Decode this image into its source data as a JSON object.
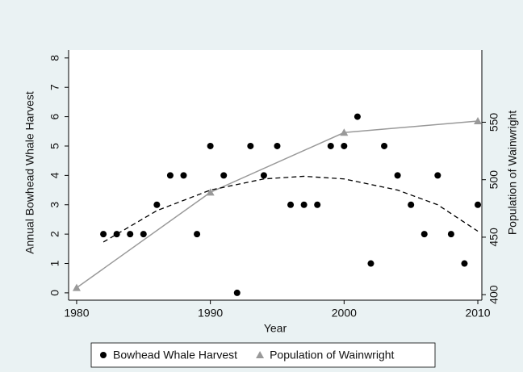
{
  "chart_data": {
    "type": "scatter",
    "x_label": "Year",
    "y_label": "Annual Bowhead Whale Harvest",
    "y2_label": "Population of Wainwright",
    "xlim": [
      1979.4,
      2010.3
    ],
    "xticks": [
      1980,
      1990,
      2000,
      2010
    ],
    "ylim": [
      -0.25,
      8.27
    ],
    "yticks": [
      0,
      1,
      2,
      3,
      4,
      5,
      6,
      7,
      8
    ],
    "y2lim": [
      395.2,
      612.8
    ],
    "y2ticks": [
      400,
      450,
      500,
      550
    ],
    "legend": "bottom",
    "series": [
      {
        "name": "Bowhead Whale Harvest",
        "kind": "scatter",
        "marker": "circle",
        "color": "#000000",
        "x": [
          1982,
          1983,
          1984,
          1985,
          1986,
          1987,
          1988,
          1989,
          1990,
          1991,
          1992,
          1993,
          1994,
          1995,
          1996,
          1997,
          1998,
          1999,
          2000,
          2001,
          2002,
          2003,
          2004,
          2005,
          2006,
          2007,
          2008,
          2009,
          2010
        ],
        "values": [
          2,
          2,
          2,
          2,
          3,
          4,
          4,
          2,
          5,
          4,
          0,
          5,
          4,
          5,
          3,
          3,
          3,
          5,
          5,
          6,
          1,
          5,
          4,
          3,
          2,
          4,
          2,
          1,
          3
        ]
      },
      {
        "name": "Population of Wainwright",
        "kind": "line",
        "marker": "triangle",
        "color": "#999999",
        "axis": "y2",
        "x": [
          1980,
          1990,
          2000,
          2010
        ],
        "values": [
          406,
          489,
          541,
          551
        ]
      },
      {
        "kind": "line",
        "dash": true,
        "color": "#000000",
        "x": [
          1982,
          1986,
          1990,
          1994,
          1997,
          2000,
          2004,
          2007,
          2010
        ],
        "values": [
          1.73,
          2.8,
          3.5,
          3.88,
          3.97,
          3.88,
          3.5,
          3.0,
          2.1
        ]
      }
    ]
  }
}
